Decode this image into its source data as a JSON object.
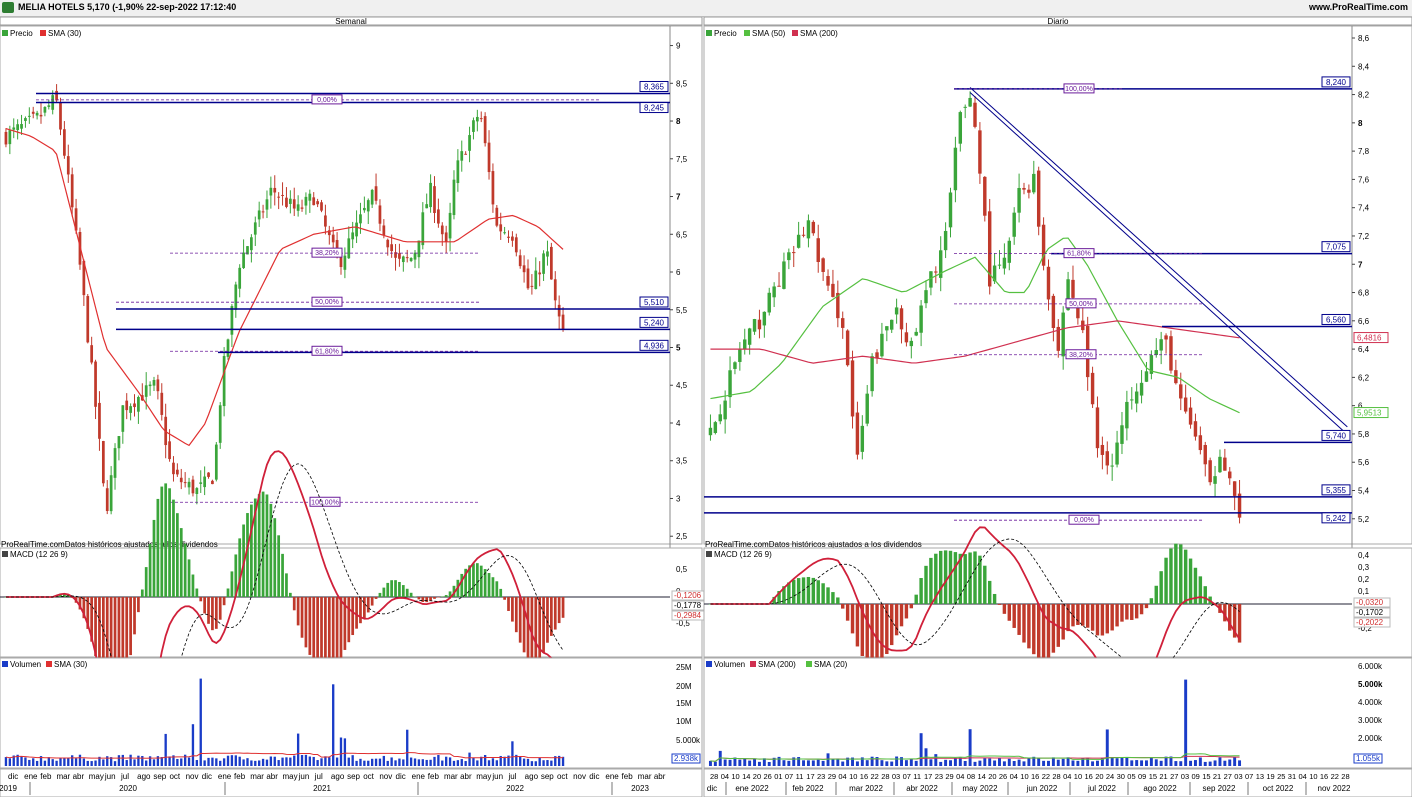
{
  "header": {
    "title": "MELIA HOTELS 5,170 (-1,90% 22-sep-2022 17:12:40",
    "site": "www.ProRealTime.com"
  },
  "panels": {
    "weekly_title": "Semanal",
    "daily_title": "Diario",
    "source_note": "ProRealTime.comDatos históricos ajustados a los dividendos",
    "legend_price": "Precio",
    "legend_sma30": "SMA (30)",
    "legend_sma50": "SMA (50)",
    "legend_sma200": "SMA (200)",
    "legend_macd": "MACD (12 26 9)",
    "legend_volume": "Volumen",
    "legend_vol_sma30": "SMA (30)",
    "legend_vol_sma200": "SMA (200)",
    "legend_vol_sma20": "SMA (20)"
  },
  "colors": {
    "up": "#3aa53a",
    "down": "#c0392b",
    "sma30": "#e03030",
    "sma50": "#55c040",
    "sma200": "#d03050",
    "level": "#00008b",
    "fib": "#6a1b9a",
    "volume": "#1a3cc8"
  },
  "chart_data": [
    {
      "name": "weekly",
      "type": "candlestick",
      "title": "Semanal",
      "ylim": [
        2.45,
        9.1
      ],
      "y_ticks": [
        "9",
        "8,5",
        "8",
        "7,5",
        "7",
        "6,5",
        "6",
        "5,5",
        "5",
        "4,5",
        "4",
        "3,5",
        "3",
        "2,5"
      ],
      "x_month_labels": [
        "dic",
        "ene",
        "feb",
        "mar",
        "abr",
        "may",
        "jun",
        "jul",
        "ago",
        "sep",
        "oct",
        "nov",
        "dic",
        "ene",
        "feb",
        "mar",
        "abr",
        "may",
        "jun",
        "jul",
        "ago",
        "sep",
        "oct",
        "nov",
        "dic",
        "ene",
        "feb",
        "mar",
        "abr",
        "may",
        "jun",
        "jul",
        "ago",
        "sep",
        "oct",
        "nov",
        "dic",
        "ene",
        "feb",
        "mar",
        "abr"
      ],
      "x_year_labels": [
        "2019",
        "2020",
        "2021",
        "2022",
        "2023"
      ],
      "price_path": [
        [
          0,
          7.8
        ],
        [
          4,
          8.05
        ],
        [
          6,
          8.3
        ],
        [
          7,
          7.6
        ],
        [
          9,
          6.0
        ],
        [
          11,
          4.0
        ],
        [
          12,
          2.8
        ],
        [
          14,
          4.2
        ],
        [
          18,
          4.5
        ],
        [
          20,
          3.3
        ],
        [
          23,
          3.1
        ],
        [
          25,
          3.3
        ],
        [
          26,
          4.6
        ],
        [
          28,
          6.1
        ],
        [
          32,
          7.1
        ],
        [
          35,
          6.8
        ],
        [
          37,
          7.0
        ],
        [
          40,
          6.1
        ],
        [
          44,
          7.0
        ],
        [
          47,
          6.1
        ],
        [
          49,
          6.2
        ],
        [
          51,
          7.1
        ],
        [
          53,
          6.3
        ],
        [
          54,
          7.3
        ],
        [
          57,
          8.15
        ],
        [
          59,
          6.6
        ],
        [
          61,
          6.5
        ],
        [
          63,
          5.7
        ],
        [
          65,
          6.3
        ],
        [
          66,
          5.6
        ],
        [
          67,
          5.17
        ]
      ],
      "sma30_path": [
        [
          0,
          7.9
        ],
        [
          3,
          7.8
        ],
        [
          6,
          7.6
        ],
        [
          12,
          5.0
        ],
        [
          16,
          4.4
        ],
        [
          19,
          3.9
        ],
        [
          22,
          3.7
        ],
        [
          24,
          4.0
        ],
        [
          28,
          5.2
        ],
        [
          33,
          6.3
        ],
        [
          37,
          6.5
        ],
        [
          42,
          6.6
        ],
        [
          48,
          6.4
        ],
        [
          54,
          6.4
        ],
        [
          58,
          6.7
        ],
        [
          61,
          6.75
        ],
        [
          64,
          6.6
        ],
        [
          67,
          6.3
        ]
      ],
      "levels": [
        {
          "label": "8,365",
          "value": 8.365
        },
        {
          "label": "8,245",
          "value": 8.245
        },
        {
          "label": "5,510",
          "value": 5.51
        },
        {
          "label": "5,240",
          "value": 5.24
        },
        {
          "label": "4,936",
          "value": 4.936
        }
      ],
      "fib_labels": [
        {
          "label": "0,00%",
          "value": 8.28
        },
        {
          "label": "38,20%",
          "value": 6.25
        },
        {
          "label": "50,00%",
          "value": 5.6
        },
        {
          "label": "61,80%",
          "value": 4.95
        },
        {
          "label": "100,00%",
          "value": 2.95
        }
      ],
      "macd_ticks": [
        "0,5",
        "0",
        "-0,5"
      ],
      "macd_values": {
        "macd": "-0,2984",
        "signal": "-0,1778",
        "hist": "-0,1206"
      },
      "volume_ticks": [
        "25M",
        "20M",
        "15M",
        "10M",
        "5.000k"
      ],
      "volume_last": "2.938k"
    },
    {
      "name": "daily",
      "type": "candlestick",
      "title": "Diario",
      "ylim": [
        5.05,
        8.6
      ],
      "y_ticks": [
        "8,6",
        "8,4",
        "8,2",
        "8",
        "7,8",
        "7,6",
        "7,4",
        "7,2",
        "7",
        "6,8",
        "6,6",
        "6,4",
        "6,2",
        "6",
        "5,8",
        "5,6",
        "5,4",
        "5,2"
      ],
      "x_day_labels": [
        "28",
        "04",
        "10",
        "14",
        "20",
        "26",
        "01",
        "07",
        "11",
        "17",
        "23",
        "29",
        "04",
        "10",
        "16",
        "22",
        "28",
        "03",
        "07",
        "11",
        "17",
        "23",
        "29",
        "04",
        "08",
        "14",
        "20",
        "26",
        "04",
        "10",
        "16",
        "22",
        "28",
        "04",
        "10",
        "16",
        "20",
        "24",
        "30",
        "05",
        "09",
        "15",
        "21",
        "27",
        "03",
        "09",
        "15",
        "21",
        "27",
        "03",
        "07",
        "13",
        "19",
        "25",
        "31",
        "04",
        "10",
        "16",
        "22",
        "28"
      ],
      "x_month_labels": [
        "dic",
        "ene 2022",
        "feb 2022",
        "mar 2022",
        "abr 2022",
        "may 2022",
        "jun 2022",
        "jul 2022",
        "ago 2022",
        "sep 2022",
        "oct 2022",
        "nov 2022"
      ],
      "price_path": [
        [
          0,
          5.8
        ],
        [
          6,
          6.4
        ],
        [
          10,
          6.6
        ],
        [
          14,
          6.9
        ],
        [
          20,
          7.3
        ],
        [
          24,
          6.8
        ],
        [
          27,
          6.6
        ],
        [
          30,
          5.6
        ],
        [
          33,
          6.3
        ],
        [
          38,
          6.7
        ],
        [
          41,
          6.4
        ],
        [
          44,
          6.8
        ],
        [
          48,
          7.2
        ],
        [
          51,
          8.05
        ],
        [
          53,
          8.2
        ],
        [
          55,
          7.7
        ],
        [
          57,
          6.9
        ],
        [
          60,
          7.0
        ],
        [
          63,
          7.5
        ],
        [
          66,
          7.6
        ],
        [
          68,
          7.0
        ],
        [
          71,
          6.4
        ],
        [
          73,
          6.9
        ],
        [
          76,
          6.5
        ],
        [
          79,
          5.7
        ],
        [
          82,
          5.6
        ],
        [
          86,
          6.1
        ],
        [
          90,
          6.35
        ],
        [
          93,
          6.45
        ],
        [
          96,
          6.0
        ],
        [
          99,
          5.8
        ],
        [
          102,
          5.4
        ],
        [
          104,
          5.7
        ],
        [
          106,
          5.5
        ],
        [
          108,
          5.17
        ]
      ],
      "sma50_path": [
        [
          0,
          6.05
        ],
        [
          8,
          6.1
        ],
        [
          14,
          6.3
        ],
        [
          22,
          6.7
        ],
        [
          30,
          6.9
        ],
        [
          38,
          6.8
        ],
        [
          46,
          6.95
        ],
        [
          52,
          7.05
        ],
        [
          58,
          6.8
        ],
        [
          62,
          6.8
        ],
        [
          66,
          7.1
        ],
        [
          70,
          7.2
        ],
        [
          74,
          7.0
        ],
        [
          80,
          6.6
        ],
        [
          86,
          6.25
        ],
        [
          92,
          6.2
        ],
        [
          98,
          6.05
        ],
        [
          104,
          5.95
        ]
      ],
      "sma200_path": [
        [
          0,
          6.4
        ],
        [
          10,
          6.4
        ],
        [
          20,
          6.3
        ],
        [
          30,
          6.35
        ],
        [
          40,
          6.3
        ],
        [
          50,
          6.35
        ],
        [
          60,
          6.45
        ],
        [
          70,
          6.55
        ],
        [
          80,
          6.6
        ],
        [
          90,
          6.55
        ],
        [
          100,
          6.5
        ],
        [
          104,
          6.48
        ]
      ],
      "trendline": {
        "from": [
          53,
          8.25
        ],
        "to": [
          130,
          5.85
        ]
      },
      "levels": [
        {
          "label": "8,240",
          "value": 8.24
        },
        {
          "label": "7,075",
          "value": 7.075
        },
        {
          "label": "6,560",
          "value": 6.56
        },
        {
          "label": "5,740",
          "value": 5.74
        },
        {
          "label": "5,355",
          "value": 5.355
        },
        {
          "label": "5,242",
          "value": 5.242
        }
      ],
      "ma_values": [
        {
          "label": "6,4816",
          "value": 6.4816,
          "color": "#d03050"
        },
        {
          "label": "5,9513",
          "value": 5.9513,
          "color": "#55c040"
        }
      ],
      "fib_labels": [
        {
          "label": "100,00%",
          "value": 8.24
        },
        {
          "label": "61,80%",
          "value": 7.075
        },
        {
          "label": "50,00%",
          "value": 6.72
        },
        {
          "label": "38,20%",
          "value": 6.36
        },
        {
          "label": "0,00%",
          "value": 5.19
        }
      ],
      "macd_ticks": [
        "0,4",
        "0,3",
        "0,2",
        "0,1",
        "0",
        "-0,1",
        "-0,2"
      ],
      "macd_values": {
        "macd": "-0,2022",
        "signal": "-0,1702",
        "hist": "-0,0320"
      },
      "volume_ticks": [
        "6.000k",
        "5.000k",
        "4.000k",
        "3.000k",
        "2.000k"
      ],
      "volume_last": "1.055k"
    }
  ]
}
